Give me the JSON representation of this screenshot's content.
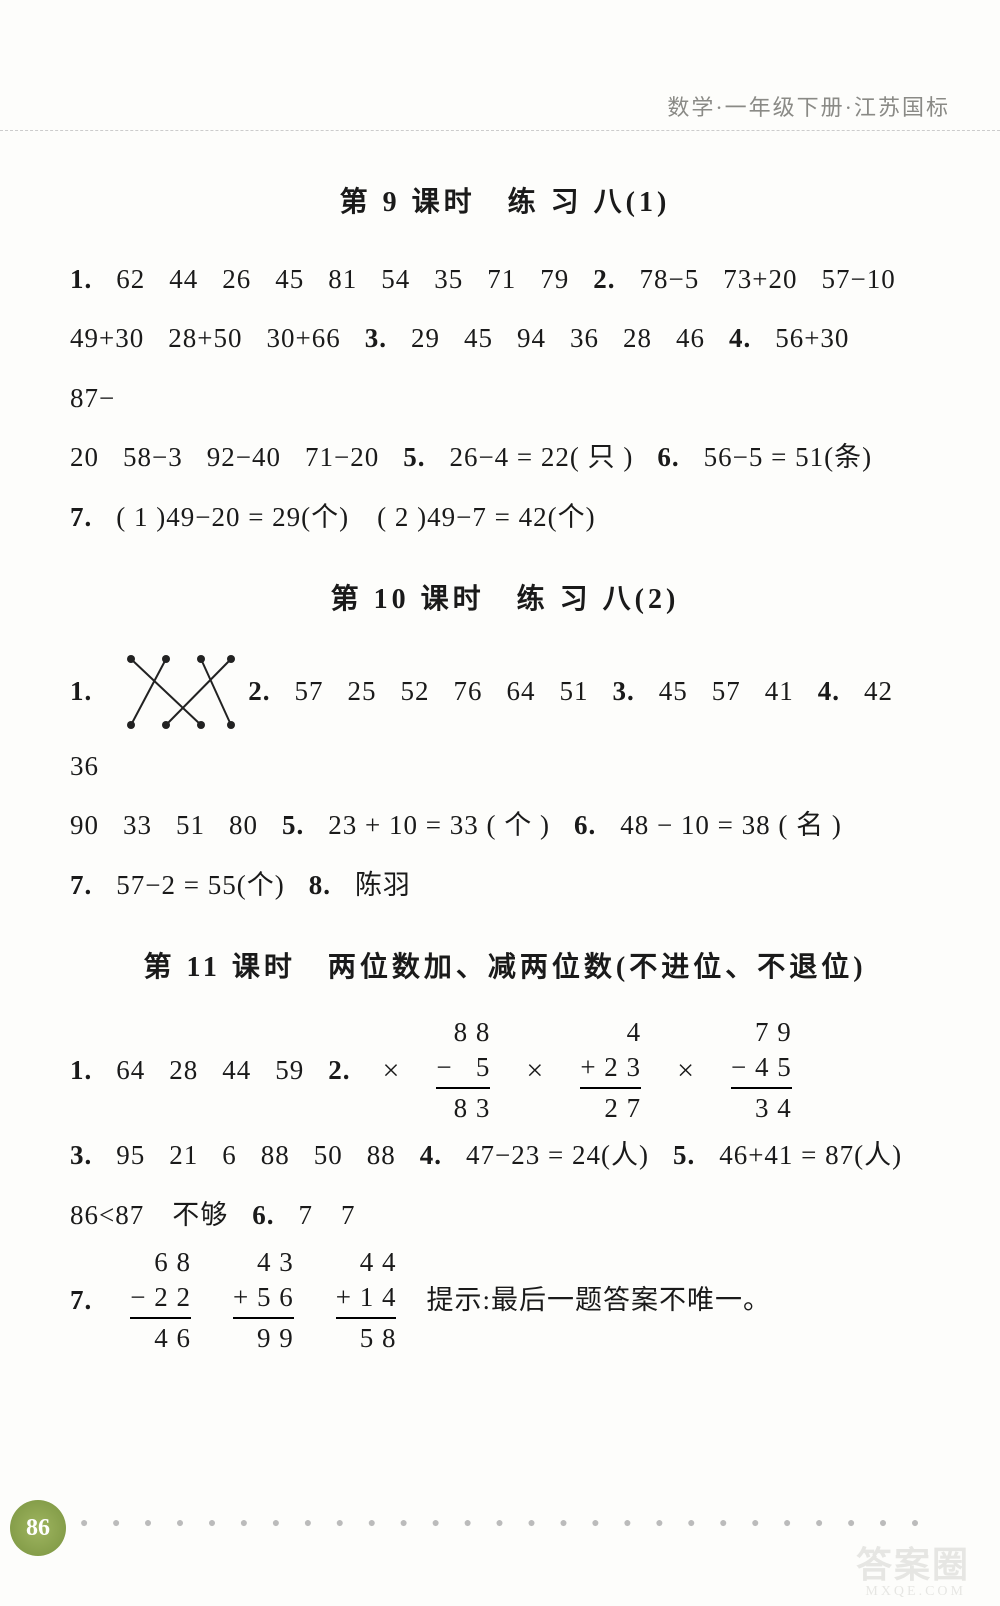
{
  "header": {
    "banner": "数学·一年级下册·江苏国标"
  },
  "sections": [
    {
      "title": "第 9 课时　练 习 八(1)",
      "lines": [
        [
          {
            "b": true,
            "t": "1."
          },
          {
            "t": "62"
          },
          {
            "t": "44"
          },
          {
            "t": "26"
          },
          {
            "t": "45"
          },
          {
            "t": "81"
          },
          {
            "t": "54"
          },
          {
            "t": "35"
          },
          {
            "t": "71"
          },
          {
            "t": "79"
          },
          {
            "b": true,
            "t": "2."
          },
          {
            "t": "78−5"
          },
          {
            "t": "73+20"
          },
          {
            "t": "57−10"
          }
        ],
        [
          {
            "t": "49+30"
          },
          {
            "t": "28+50"
          },
          {
            "t": "30+66"
          },
          {
            "b": true,
            "t": "3."
          },
          {
            "t": "29"
          },
          {
            "t": "45"
          },
          {
            "t": "94"
          },
          {
            "t": "36"
          },
          {
            "t": "28"
          },
          {
            "t": "46"
          },
          {
            "b": true,
            "t": "4."
          },
          {
            "t": "56+30"
          },
          {
            "t": "87−"
          }
        ],
        [
          {
            "t": "20"
          },
          {
            "t": "58−3"
          },
          {
            "t": "92−40"
          },
          {
            "t": "71−20"
          },
          {
            "b": true,
            "t": "5."
          },
          {
            "t": "26−4 = 22( 只 )"
          },
          {
            "b": true,
            "t": "6."
          },
          {
            "t": "56−5 = 51(条)"
          }
        ],
        [
          {
            "b": true,
            "t": "7."
          },
          {
            "t": "( 1 )49−20 = 29(个)　( 2 )49−7 = 42(个)"
          }
        ]
      ]
    },
    {
      "title": "第 10 课时　练 习 八(2)",
      "lines": [
        [
          {
            "b": true,
            "t": "1."
          },
          {
            "svg": "match"
          },
          {
            "b": true,
            "t": "2."
          },
          {
            "t": "57"
          },
          {
            "t": "25"
          },
          {
            "t": "52"
          },
          {
            "t": "76"
          },
          {
            "t": "64"
          },
          {
            "t": "51"
          },
          {
            "b": true,
            "t": "3."
          },
          {
            "t": "45"
          },
          {
            "t": "57"
          },
          {
            "t": "41"
          },
          {
            "b": true,
            "t": "4."
          },
          {
            "t": "42"
          },
          {
            "t": "36"
          }
        ],
        [
          {
            "t": "90"
          },
          {
            "t": "33"
          },
          {
            "t": "51"
          },
          {
            "t": "80"
          },
          {
            "b": true,
            "t": "5."
          },
          {
            "t": "23 + 10 = 33 ( 个 )"
          },
          {
            "b": true,
            "t": "6."
          },
          {
            "t": "48 − 10 = 38 ( 名 )"
          }
        ],
        [
          {
            "b": true,
            "t": "7."
          },
          {
            "t": "57−2 = 55(个)"
          },
          {
            "b": true,
            "t": "8."
          },
          {
            "t": "陈羽"
          }
        ]
      ]
    },
    {
      "title": "第 11 课时　两位数加、减两位数(不进位、不退位)",
      "lines": [
        [
          {
            "b": true,
            "t": "1."
          },
          {
            "t": "64"
          },
          {
            "t": "28"
          },
          {
            "t": "44"
          },
          {
            "t": "59"
          },
          {
            "b": true,
            "t": "2."
          },
          {
            "vgroup": [
              {
                "mark": "×",
                "rows": [
                  "  8 8",
                  "−   5",
                  "  8 3"
                ]
              },
              {
                "mark": "×",
                "rows": [
                  "     4",
                  "+ 2 3",
                  "  2 7"
                ]
              },
              {
                "mark": "×",
                "rows": [
                  "   7 9",
                  "− 4 5",
                  "  3 4"
                ]
              }
            ]
          }
        ],
        [
          {
            "b": true,
            "t": "3."
          },
          {
            "t": "95"
          },
          {
            "t": "21"
          },
          {
            "t": "6"
          },
          {
            "t": "88"
          },
          {
            "t": "50"
          },
          {
            "t": "88"
          },
          {
            "b": true,
            "t": "4."
          },
          {
            "t": "47−23 = 24(人)"
          },
          {
            "b": true,
            "t": "5."
          },
          {
            "t": "46+41 = 87(人)"
          }
        ],
        [
          {
            "t": "86<87　不够"
          },
          {
            "b": true,
            "t": "6."
          },
          {
            "t": "7　7"
          }
        ],
        [
          {
            "b": true,
            "t": "7."
          },
          {
            "vgroup": [
              {
                "mark": "",
                "rows": [
                  "   6 8",
                  "− 2 2",
                  "  4 6"
                ]
              },
              {
                "mark": "",
                "rows": [
                  "   4 3",
                  "+ 5 6",
                  "  9 9"
                ]
              },
              {
                "mark": "",
                "rows": [
                  "   4 4",
                  "+ 1 4",
                  "  5 8"
                ]
              }
            ]
          },
          {
            "t": "提示:最后一题答案不唯一。"
          }
        ]
      ]
    }
  ],
  "matching_diagram": {
    "width": 120,
    "height": 90,
    "stroke": "#222",
    "top_dots": [
      15,
      50,
      85,
      115
    ],
    "bottom_dots": [
      15,
      50,
      85,
      115
    ],
    "edges": [
      [
        0,
        2
      ],
      [
        1,
        0
      ],
      [
        2,
        3
      ],
      [
        3,
        1
      ]
    ]
  },
  "page_number": "86",
  "watermark": "答案圈",
  "watermark_sub": "MXQE.COM",
  "colors": {
    "text": "#1a1a1a",
    "banner": "#8a8a86",
    "page_badge_bg": "#8aa84e",
    "watermark": "#d8d8d4"
  }
}
